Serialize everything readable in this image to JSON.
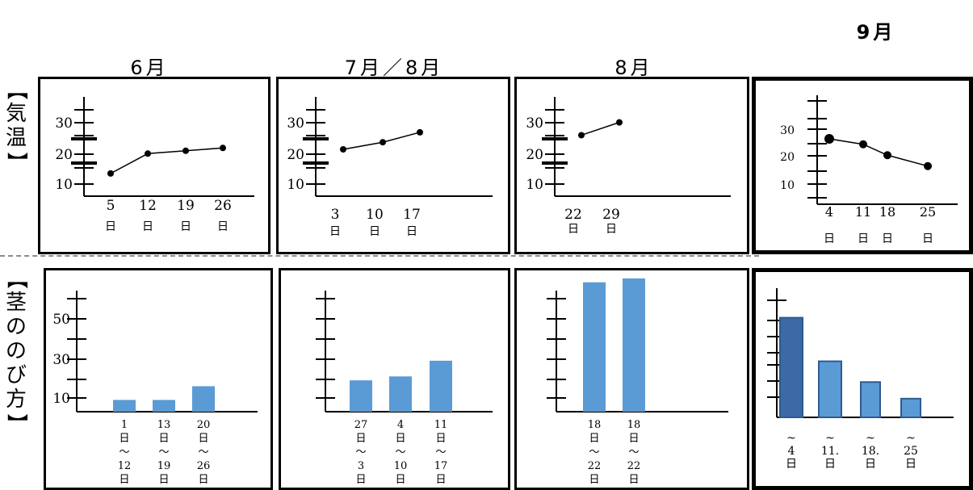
{
  "months": [
    "6月",
    "7月／8月",
    "8月",
    "9月"
  ],
  "row_labels": {
    "temperature": [
      "【",
      "気",
      "温",
      "】"
    ],
    "growth": [
      "【",
      "茎",
      "の",
      "の",
      "び",
      "方",
      "】"
    ]
  },
  "colors": {
    "bar": "#5b9bd5",
    "bar_dark": "#3c6aa6",
    "bar_stroke": "#2e5a90",
    "axis": "#000000"
  },
  "chart_data": [
    {
      "type": "line",
      "panel": "temp-june",
      "x": [
        "5",
        "12",
        "19",
        "26"
      ],
      "x_units": [
        "日",
        "日",
        "日",
        "日"
      ],
      "y": [
        13,
        20,
        21,
        22
      ],
      "yticks": [
        "30",
        "20",
        "10"
      ],
      "ylim": [
        5,
        40
      ]
    },
    {
      "type": "line",
      "panel": "temp-july-aug",
      "x": [
        "3",
        "10",
        "17"
      ],
      "x_units": [
        "日",
        "日",
        "日"
      ],
      "y": [
        21.5,
        24,
        27.5
      ],
      "yticks": [
        "30",
        "20",
        "10"
      ],
      "ylim": [
        5,
        40
      ]
    },
    {
      "type": "line",
      "panel": "temp-aug",
      "x": [
        "22",
        "29"
      ],
      "x_units": [
        "日",
        "日"
      ],
      "y": [
        26.5,
        31
      ],
      "yticks": [
        "30",
        "20",
        "10"
      ],
      "ylim": [
        5,
        40
      ]
    },
    {
      "type": "line",
      "panel": "temp-sep",
      "x": [
        "4",
        "11",
        "18",
        "25"
      ],
      "x_units": [
        "日",
        "日",
        "日",
        "日"
      ],
      "y": [
        24,
        22,
        18,
        14
      ],
      "yticks": [
        "30",
        "20",
        "10"
      ],
      "ylim": [
        0,
        40
      ]
    },
    {
      "type": "bar",
      "panel": "growth-june",
      "categories": [
        [
          "1",
          "日",
          "～",
          "12",
          "日"
        ],
        [
          "13",
          "日",
          "～",
          "19",
          "日"
        ],
        [
          "20",
          "日",
          "～",
          "26",
          "日"
        ]
      ],
      "values": [
        6,
        6,
        13
      ],
      "yticks": [
        "50",
        "30",
        "10"
      ],
      "ylim": [
        0,
        70
      ]
    },
    {
      "type": "bar",
      "panel": "growth-july-aug",
      "categories": [
        [
          "27",
          "日",
          "～",
          "3",
          "日"
        ],
        [
          "4",
          "日",
          "～",
          "10",
          "日"
        ],
        [
          "11",
          "日",
          "～",
          "17",
          "日"
        ]
      ],
      "values": [
        16,
        18,
        26
      ],
      "ylim": [
        0,
        70
      ]
    },
    {
      "type": "bar",
      "panel": "growth-aug",
      "categories": [
        [
          "18",
          "日",
          "～",
          "22",
          "日"
        ],
        [
          "18",
          "日",
          "～",
          "22",
          "日"
        ]
      ],
      "values": [
        66,
        68
      ],
      "ylim": [
        0,
        70
      ]
    },
    {
      "type": "bar",
      "panel": "growth-sep",
      "categories": [
        [
          "~",
          "4",
          "日"
        ],
        [
          "~",
          "11.",
          "日"
        ],
        [
          "~",
          "18.",
          "日"
        ],
        [
          "~",
          "25",
          "日"
        ]
      ],
      "values": [
        48,
        27,
        17,
        9
      ],
      "ylim": [
        0,
        70
      ]
    }
  ]
}
